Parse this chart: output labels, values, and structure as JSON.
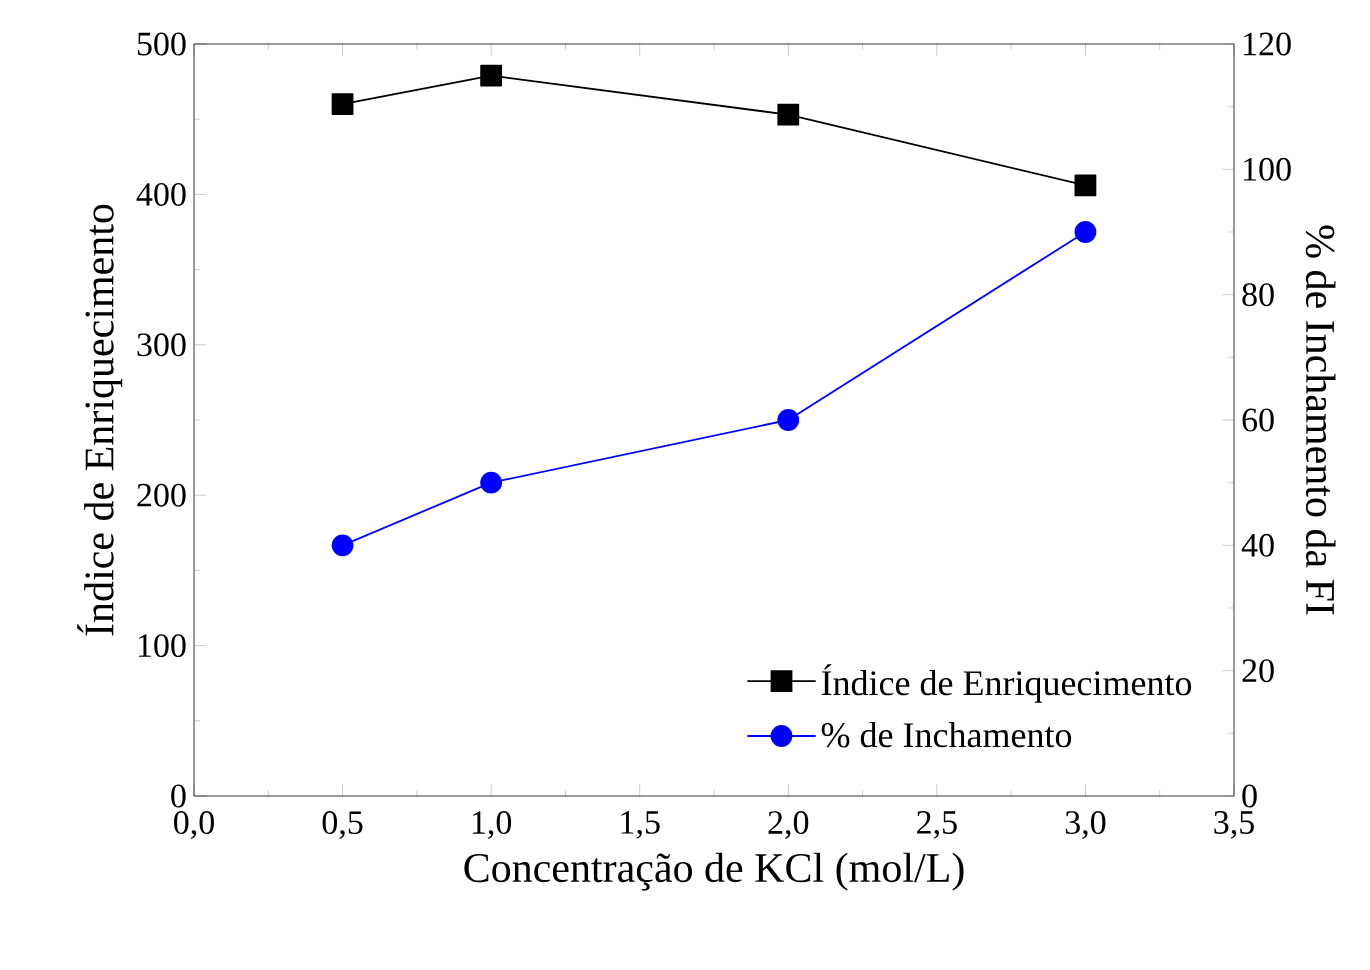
{
  "chart_data": {
    "type": "line",
    "xlabel": "Concentração de KCl (mol/L)",
    "ylabel": "Índice de Enriquecimento",
    "y2label": "% de Inchamento da FI",
    "x": [
      0.5,
      1.0,
      2.0,
      3.0
    ],
    "series": [
      {
        "name": "Índice de Enriquecimento",
        "color": "#000000",
        "marker": "square",
        "values": [
          460,
          479,
          453,
          406
        ]
      },
      {
        "name": "% de Inchamento",
        "color": "#0000ff",
        "marker": "circle",
        "axis": "y2",
        "values": [
          40,
          50,
          60,
          90
        ]
      }
    ],
    "xlim": [
      0,
      3.5
    ],
    "xticks": [
      {
        "value": 0,
        "label": "0,0"
      },
      {
        "value": 0.5,
        "label": "0,5"
      },
      {
        "value": 1,
        "label": "1,0"
      },
      {
        "value": 1.5,
        "label": "1,5"
      },
      {
        "value": 2,
        "label": "2,0"
      },
      {
        "value": 2.5,
        "label": "2,5"
      },
      {
        "value": 3,
        "label": "3,0"
      },
      {
        "value": 3.5,
        "label": "3,5"
      }
    ],
    "ylim": [
      0,
      500
    ],
    "yticks": [
      0,
      100,
      200,
      300,
      400,
      500
    ],
    "y2lim": [
      0,
      120
    ],
    "y2ticks": [
      0,
      20,
      40,
      60,
      80,
      100,
      120
    ],
    "legend": "bottom right",
    "grid": false,
    "line_style": "solid"
  }
}
